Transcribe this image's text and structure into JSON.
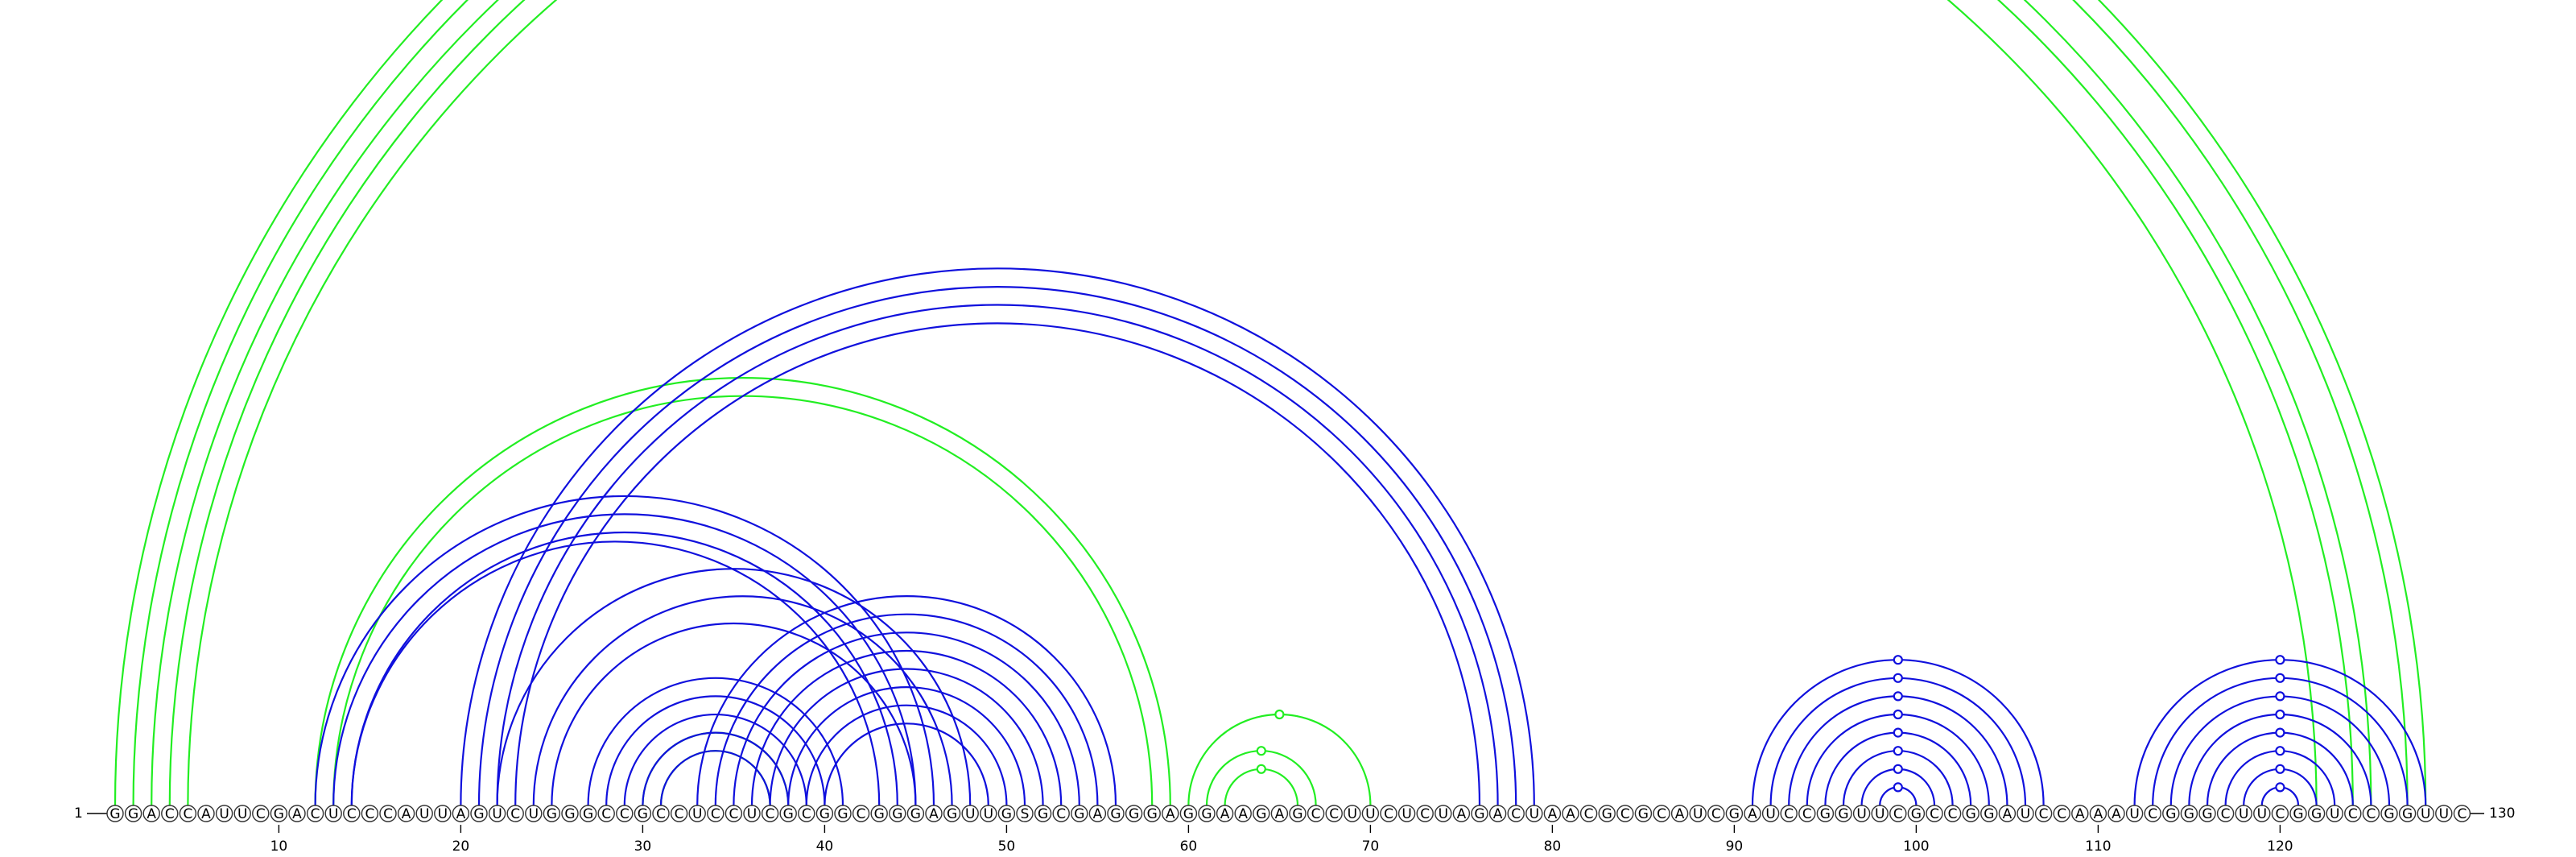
{
  "sequence": "GGACCAUUCGACUCCCAUUAGUCUGGGCCGCCUCCUCGCGGCGGGAGUUGSGCGAGGGAGGAAGAGCCUUCUCUAGACUAACGCGCAUCGAUCCGGUUCGCCGGAUCCAAAUCGGGCUUCGGUCCGGUUC",
  "start_label": "1",
  "end_label": "130",
  "ticks": [
    "10",
    "20",
    "30",
    "40",
    "50",
    "60",
    "70",
    "80",
    "90",
    "100",
    "110",
    "120"
  ],
  "colors": {
    "blue": "#1010dd",
    "green": "#22ee22"
  },
  "structures": {
    "blue": {
      "helices": [
        {
          "i": 12,
          "j": 46,
          "len": 3
        },
        {
          "i": 14,
          "j": 43,
          "len": 1
        },
        {
          "i": 20,
          "j": 79,
          "len": 4
        },
        {
          "i": 22,
          "j": 48,
          "len": 1
        },
        {
          "i": 24,
          "j": 47,
          "len": 1
        },
        {
          "i": 25,
          "j": 45,
          "len": 1
        },
        {
          "i": 27,
          "j": 41,
          "len": 5
        },
        {
          "i": 33,
          "j": 56,
          "len": 4
        },
        {
          "i": 37,
          "j": 52,
          "len": 4
        },
        {
          "i": 91,
          "j": 107,
          "len": 8
        },
        {
          "i": 112,
          "j": 128,
          "len": 8
        }
      ],
      "markers": [
        99,
        120
      ]
    },
    "green": {
      "helices": [
        {
          "i": 1,
          "j": 128,
          "len": 2
        },
        {
          "i": 3,
          "j": 125,
          "len": 2
        },
        {
          "i": 5,
          "j": 122,
          "len": 1
        },
        {
          "i": 12,
          "j": 59,
          "len": 2
        },
        {
          "i": 30,
          "j": 38,
          "len": 2
        },
        {
          "i": 60,
          "j": 70,
          "len": 1
        },
        {
          "i": 61,
          "j": 67,
          "len": 2
        }
      ],
      "markers": [
        64
      ]
    }
  }
}
